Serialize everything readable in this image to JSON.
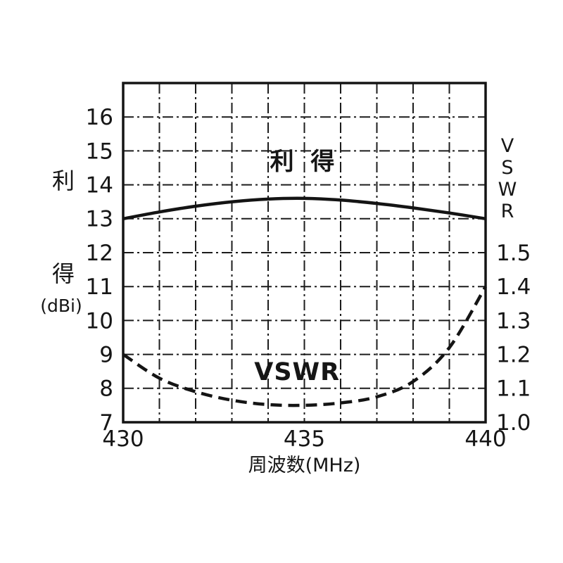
{
  "chart_data": {
    "type": "line",
    "title": "",
    "xlabel": "周波数(MHz)",
    "xlim": [
      430,
      440
    ],
    "x_grid_step": 1,
    "x_ticks": [
      {
        "value": 430,
        "label": "430"
      },
      {
        "value": 435,
        "label": "435"
      },
      {
        "value": 440,
        "label": "440"
      }
    ],
    "left_axis": {
      "title_lines": [
        "利",
        "得",
        "(dBi)"
      ],
      "ylim": [
        7,
        17
      ],
      "grid_step": 1,
      "ticks": [
        {
          "value": 16,
          "label": "16"
        },
        {
          "value": 15,
          "label": "15"
        },
        {
          "value": 14,
          "label": "14"
        },
        {
          "value": 13,
          "label": "13"
        },
        {
          "value": 12,
          "label": "12"
        },
        {
          "value": 11,
          "label": "11"
        },
        {
          "value": 10,
          "label": "10"
        },
        {
          "value": 9,
          "label": "9"
        },
        {
          "value": 8,
          "label": "8"
        },
        {
          "value": 7,
          "label": "7"
        }
      ]
    },
    "right_axis": {
      "title_lines": [
        "V",
        "S",
        "W",
        "R"
      ],
      "ylim": [
        1.0,
        2.0
      ],
      "ticks": [
        {
          "value": 1.5,
          "label": "1.5"
        },
        {
          "value": 1.4,
          "label": "1.4"
        },
        {
          "value": 1.3,
          "label": "1.3"
        },
        {
          "value": 1.2,
          "label": "1.2"
        },
        {
          "value": 1.1,
          "label": "1.1"
        },
        {
          "value": 1.0,
          "label": "1.0"
        }
      ]
    },
    "grid": {
      "style": "dash-dot",
      "on": true,
      "color": "#1c1c1c"
    },
    "legend": {
      "position": "inline-labels"
    },
    "series": [
      {
        "name": "利 得",
        "axis": "left",
        "line": "solid",
        "color": "#141414",
        "x": [
          430,
          431,
          432,
          433,
          434,
          435,
          436,
          437,
          438,
          439,
          440
        ],
        "y": [
          13.0,
          13.2,
          13.37,
          13.5,
          13.58,
          13.6,
          13.55,
          13.45,
          13.32,
          13.17,
          13.0
        ],
        "label": {
          "text": "利 得",
          "x": 435.0,
          "y": 14.45
        }
      },
      {
        "name": "VSWR",
        "axis": "right",
        "line": "dashed",
        "color": "#141414",
        "x": [
          430,
          431,
          432,
          433,
          434,
          435,
          436,
          437,
          438,
          439,
          440
        ],
        "y": [
          1.2,
          1.13,
          1.09,
          1.065,
          1.052,
          1.05,
          1.057,
          1.075,
          1.12,
          1.22,
          1.4
        ],
        "label": {
          "text": "VSWR",
          "x": 434.8,
          "y": 1.125
        }
      }
    ]
  }
}
